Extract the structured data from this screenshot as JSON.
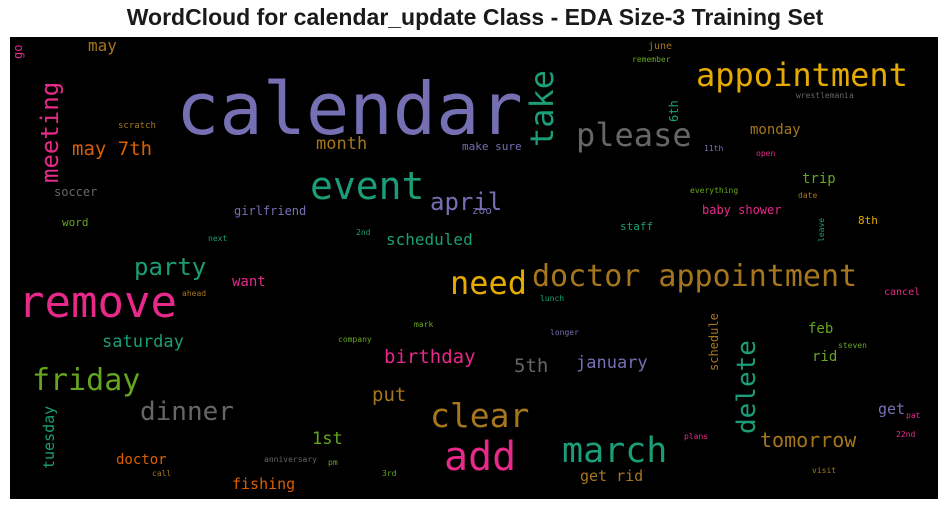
{
  "chart_data": {
    "type": "wordcloud",
    "title": "WordCloud for calendar_update Class - EDA Size-3 Training Set",
    "background": "#000000",
    "words": [
      {
        "text": "calendar",
        "color": "#7570b3"
      },
      {
        "text": "remove",
        "color": "#e7298a"
      },
      {
        "text": "appointment",
        "color": "#e6ab02"
      },
      {
        "text": "doctor appointment",
        "color": "#a6761d"
      },
      {
        "text": "event",
        "color": "#1b9e77"
      },
      {
        "text": "please",
        "color": "#666666"
      },
      {
        "text": "take",
        "color": "#1b9e77"
      },
      {
        "text": "add",
        "color": "#e7298a"
      },
      {
        "text": "need",
        "color": "#e6ab02"
      },
      {
        "text": "march",
        "color": "#1b9e77"
      },
      {
        "text": "clear",
        "color": "#a6761d"
      },
      {
        "text": "friday",
        "color": "#66a61e"
      },
      {
        "text": "meeting",
        "color": "#e7298a"
      },
      {
        "text": "delete",
        "color": "#1b9e77"
      },
      {
        "text": "dinner",
        "color": "#666666"
      },
      {
        "text": "party",
        "color": "#1b9e77"
      },
      {
        "text": "april",
        "color": "#7570b3"
      },
      {
        "text": "tomorrow",
        "color": "#a6761d"
      },
      {
        "text": "birthday",
        "color": "#e7298a"
      },
      {
        "text": "may 7th",
        "color": "#d95f02"
      },
      {
        "text": "saturday",
        "color": "#1b9e77"
      },
      {
        "text": "scheduled",
        "color": "#1b9e77"
      },
      {
        "text": "month",
        "color": "#a6761d"
      },
      {
        "text": "january",
        "color": "#7570b3"
      },
      {
        "text": "5th",
        "color": "#666666"
      },
      {
        "text": "put",
        "color": "#a6761d"
      },
      {
        "text": "1st",
        "color": "#66a61e"
      },
      {
        "text": "monday",
        "color": "#a6761d"
      },
      {
        "text": "may",
        "color": "#a6761d"
      },
      {
        "text": "tuesday",
        "color": "#1b9e77"
      },
      {
        "text": "fishing",
        "color": "#d95f02"
      },
      {
        "text": "get rid",
        "color": "#a6761d"
      },
      {
        "text": "doctor",
        "color": "#d95f02"
      },
      {
        "text": "trip",
        "color": "#66a61e"
      },
      {
        "text": "feb",
        "color": "#66a61e"
      },
      {
        "text": "rid",
        "color": "#66a61e"
      },
      {
        "text": "get",
        "color": "#7570b3"
      },
      {
        "text": "want",
        "color": "#e7298a"
      },
      {
        "text": "girlfriend",
        "color": "#7570b3"
      },
      {
        "text": "soccer",
        "color": "#666666"
      },
      {
        "text": "baby shower",
        "color": "#e7298a"
      },
      {
        "text": "schedule",
        "color": "#a6761d"
      },
      {
        "text": "6th",
        "color": "#1b9e77"
      },
      {
        "text": "8th",
        "color": "#e6ab02"
      },
      {
        "text": "staff",
        "color": "#1b9e77"
      },
      {
        "text": "zoo",
        "color": "#7570b3"
      },
      {
        "text": "make sure",
        "color": "#7570b3"
      },
      {
        "text": "go",
        "color": "#e7298a"
      },
      {
        "text": "word",
        "color": "#66a61e"
      },
      {
        "text": "june",
        "color": "#a6761d"
      },
      {
        "text": "cancel",
        "color": "#e7298a"
      },
      {
        "text": "scratch",
        "color": "#a6761d"
      },
      {
        "text": "remember",
        "color": "#66a61e"
      },
      {
        "text": "wrestlemania",
        "color": "#666666"
      },
      {
        "text": "11th",
        "color": "#7570b3"
      },
      {
        "text": "open",
        "color": "#e7298a"
      },
      {
        "text": "everything",
        "color": "#66a61e"
      },
      {
        "text": "date",
        "color": "#a6761d"
      },
      {
        "text": "leave",
        "color": "#1b9e77"
      },
      {
        "text": "next",
        "color": "#1b9e77"
      },
      {
        "text": "2nd",
        "color": "#1b9e77"
      },
      {
        "text": "ahead",
        "color": "#a6761d"
      },
      {
        "text": "lunch",
        "color": "#1b9e77"
      },
      {
        "text": "mark",
        "color": "#66a61e"
      },
      {
        "text": "longer",
        "color": "#7570b3"
      },
      {
        "text": "company",
        "color": "#66a61e"
      },
      {
        "text": "steven",
        "color": "#66a61e"
      },
      {
        "text": "pat",
        "color": "#e7298a"
      },
      {
        "text": "22nd",
        "color": "#e7298a"
      },
      {
        "text": "plans",
        "color": "#e7298a"
      },
      {
        "text": "anniversary",
        "color": "#666666"
      },
      {
        "text": "pm",
        "color": "#66a61e"
      },
      {
        "text": "call",
        "color": "#a6761d"
      },
      {
        "text": "3rd",
        "color": "#66a61e"
      },
      {
        "text": "visit",
        "color": "#a6761d"
      }
    ]
  }
}
